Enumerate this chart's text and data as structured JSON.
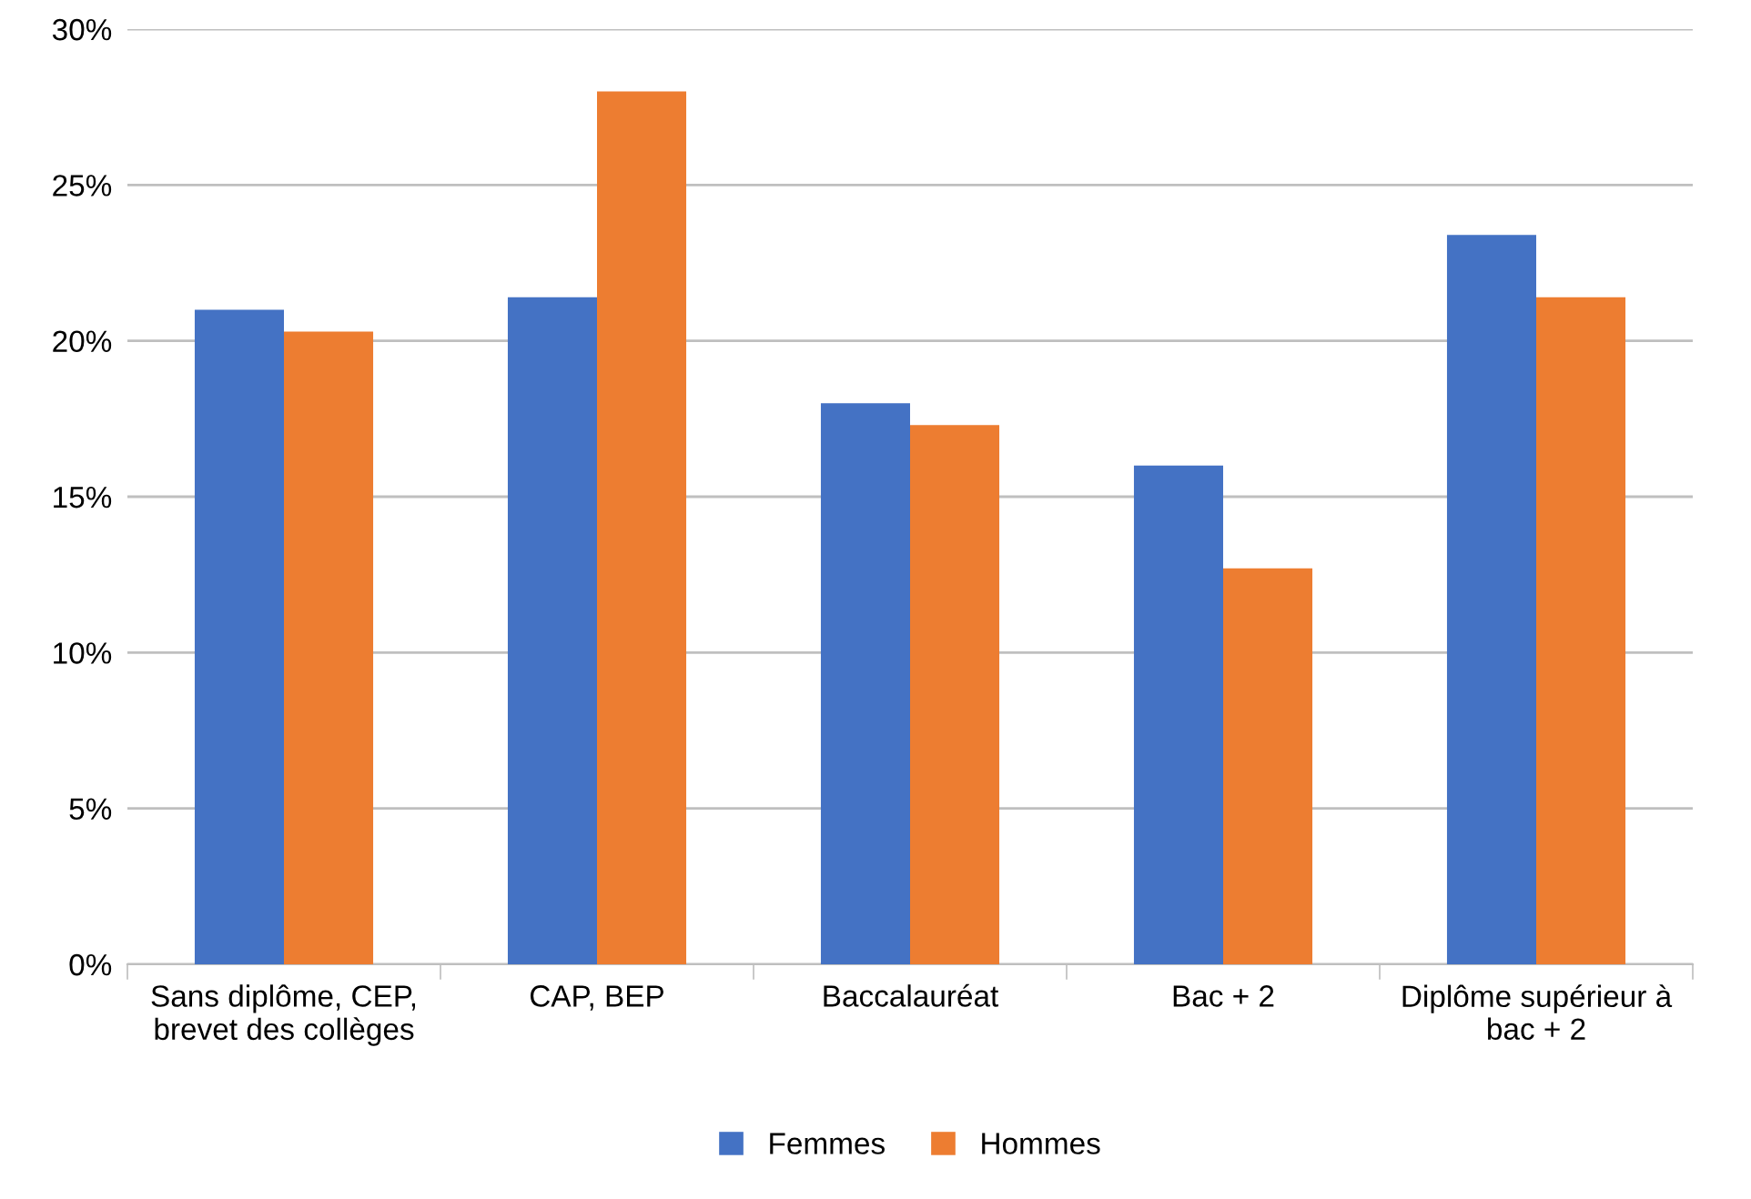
{
  "chart_data": {
    "type": "bar",
    "categories": [
      "Sans diplôme, CEP,\nbrevet des collèges",
      "CAP, BEP",
      "Baccalauréat",
      "Bac + 2",
      "Diplôme supérieur à\nbac + 2"
    ],
    "series": [
      {
        "name": "Femmes",
        "color": "#4472c4",
        "values": [
          21.0,
          21.4,
          18.0,
          16.0,
          23.4
        ]
      },
      {
        "name": "Hommes",
        "color": "#ed7d31",
        "values": [
          20.3,
          28.0,
          17.3,
          12.7,
          21.4
        ]
      }
    ],
    "ylim": [
      0,
      30
    ],
    "yticks": [
      {
        "value": 0,
        "label": "0%"
      },
      {
        "value": 5,
        "label": "5%"
      },
      {
        "value": 10,
        "label": "10%"
      },
      {
        "value": 15,
        "label": "15%"
      },
      {
        "value": 20,
        "label": "20%"
      },
      {
        "value": 25,
        "label": "25%"
      },
      {
        "value": 30,
        "label": "30%"
      }
    ],
    "grid": "y",
    "legend": "bottom"
  }
}
